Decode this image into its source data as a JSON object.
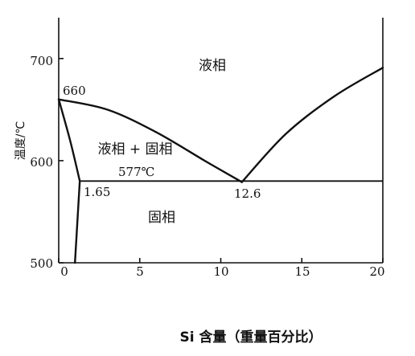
{
  "diagram": {
    "y_axis_label": "温度/℃",
    "x_axis_label": "Si 含量（重量百分比）",
    "x_ticks": [
      "0",
      "5",
      "10",
      "15",
      "20"
    ],
    "y_ticks": [
      "500",
      "600",
      "700"
    ],
    "regions": {
      "liquid": "液相",
      "liquid_solid": "液相 + 固相",
      "solid": "固相"
    },
    "annotations": {
      "melting_point": "660",
      "eutectic_temp": "577℃",
      "solubility_limit": "1.65",
      "eutectic_composition": "12.6"
    }
  },
  "chart_data": {
    "type": "line",
    "xlabel": "Si 含量（重量百分比）",
    "ylabel": "温度/℃",
    "xlim": [
      0,
      20
    ],
    "ylim": [
      500,
      740
    ],
    "x_ticks": [
      0,
      5,
      10,
      15,
      20
    ],
    "y_ticks": [
      500,
      600,
      700
    ],
    "series": [
      {
        "values": [
          [
            0,
            660
          ],
          [
            3,
            650
          ],
          [
            6,
            628
          ],
          [
            9,
            600
          ],
          [
            11.3,
            579
          ]
        ]
      },
      {
        "values": [
          [
            11.3,
            579
          ],
          [
            14,
            626
          ],
          [
            17,
            663
          ],
          [
            20,
            691
          ]
        ]
      },
      {
        "values": [
          [
            0,
            660
          ],
          [
            0.7,
            620
          ],
          [
            1.3,
            580
          ]
        ]
      },
      {
        "values": [
          [
            1.3,
            580
          ],
          [
            20,
            580
          ]
        ]
      },
      {
        "values": [
          [
            1.3,
            580
          ],
          [
            1.0,
            500
          ]
        ]
      }
    ],
    "eutectic": {
      "temperature": 577,
      "composition": 12.6
    },
    "max_solubility": 1.65,
    "al_melting_point": 660
  }
}
